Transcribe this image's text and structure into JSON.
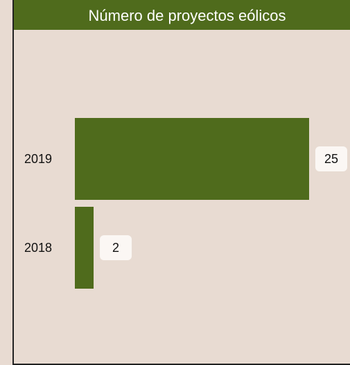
{
  "chart_data": {
    "type": "bar",
    "orientation": "horizontal",
    "title": "Número de proyectos eólicos",
    "categories": [
      "2019",
      "2018"
    ],
    "values": [
      25,
      2
    ],
    "color": "#4f6b1c",
    "xlim": [
      0,
      25
    ]
  }
}
